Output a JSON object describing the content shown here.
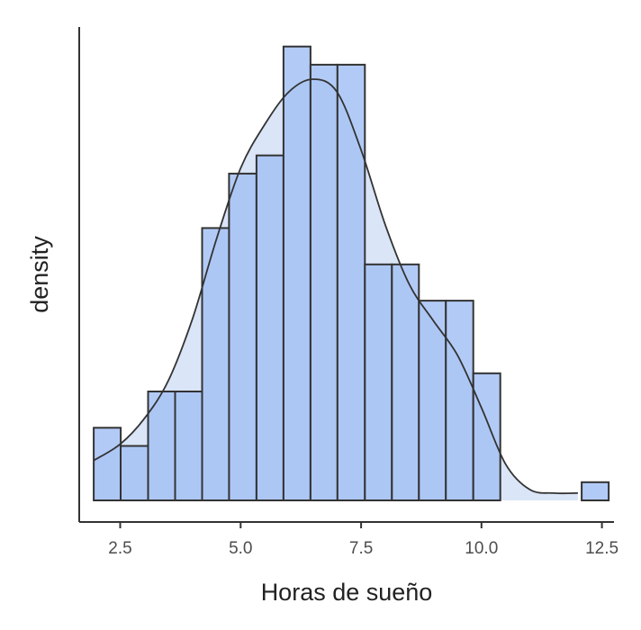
{
  "chart_data": {
    "type": "bar",
    "subtype": "histogram-with-density",
    "title": "",
    "xlabel": "Horas de sueño",
    "ylabel": "density",
    "xlim": [
      1.65,
      12.75
    ],
    "ylim": [
      0,
      0.233
    ],
    "y_ticks_shown": false,
    "x_ticks": [
      2.5,
      5.0,
      7.5,
      10.0,
      12.5
    ],
    "x_tick_labels": [
      "2.5",
      "5.0",
      "7.5",
      "10.0",
      "12.5"
    ],
    "grid": false,
    "legend": "none",
    "bin_width": 0.5625,
    "bin_start": 1.95,
    "bins": [
      {
        "x0": 1.95,
        "x1": 2.51,
        "density": 0.04
      },
      {
        "x0": 2.51,
        "x1": 3.08,
        "density": 0.03
      },
      {
        "x0": 3.08,
        "x1": 3.64,
        "density": 0.06
      },
      {
        "x0": 3.64,
        "x1": 4.2,
        "density": 0.06
      },
      {
        "x0": 4.2,
        "x1": 4.76,
        "density": 0.15
      },
      {
        "x0": 4.76,
        "x1": 5.33,
        "density": 0.18
      },
      {
        "x0": 5.33,
        "x1": 5.89,
        "density": 0.19
      },
      {
        "x0": 5.89,
        "x1": 6.45,
        "density": 0.25
      },
      {
        "x0": 6.45,
        "x1": 7.01,
        "density": 0.24
      },
      {
        "x0": 7.01,
        "x1": 7.58,
        "density": 0.24
      },
      {
        "x0": 7.58,
        "x1": 8.14,
        "density": 0.13
      },
      {
        "x0": 8.14,
        "x1": 8.7,
        "density": 0.13
      },
      {
        "x0": 8.7,
        "x1": 9.26,
        "density": 0.11
      },
      {
        "x0": 9.26,
        "x1": 9.83,
        "density": 0.11
      },
      {
        "x0": 9.83,
        "x1": 10.39,
        "density": 0.07
      },
      {
        "x0": 10.39,
        "x1": 10.95,
        "density": 0
      },
      {
        "x0": 10.95,
        "x1": 11.51,
        "density": 0
      },
      {
        "x0": 11.51,
        "x1": 12.08,
        "density": 0
      },
      {
        "x0": 12.08,
        "x1": 12.64,
        "density": 0.01
      }
    ],
    "density_curve": {
      "x": [
        1.95,
        2.5,
        3.0,
        3.5,
        4.0,
        4.5,
        5.0,
        5.5,
        6.0,
        6.5,
        7.0,
        7.5,
        8.0,
        8.5,
        9.0,
        9.5,
        10.0,
        10.5,
        11.0,
        11.5,
        12.0
      ],
      "y": [
        0.022,
        0.031,
        0.045,
        0.066,
        0.1,
        0.144,
        0.183,
        0.207,
        0.225,
        0.232,
        0.225,
        0.193,
        0.152,
        0.119,
        0.099,
        0.08,
        0.051,
        0.02,
        0.006,
        0.004,
        0.004
      ]
    },
    "colors": {
      "bar_fill": "#a4c2f4",
      "bar_stroke": "#333333",
      "density_fill": "#dae5f7",
      "density_line": "#333333",
      "axis_line": "#333333"
    }
  }
}
